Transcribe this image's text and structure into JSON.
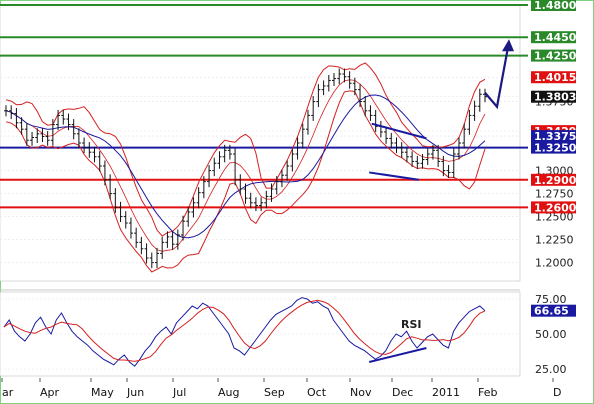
{
  "chart_data": [
    {
      "type": "candlestick",
      "ylim": [
        1.18,
        1.48
      ],
      "y_ticks": [
        "1.4800",
        "1.4450",
        "1.4250",
        "1.4015",
        "1.3803",
        "1.3750",
        "1.3429",
        "1.3375",
        "1.3250",
        "1.3000",
        "1.2900",
        "1.2750",
        "1.2600",
        "1.2500",
        "1.2250",
        "1.2000"
      ],
      "x_ticks": [
        "ar",
        "Apr",
        "May",
        "Jun",
        "Jul",
        "Aug",
        "Sep",
        "Oct",
        "Nov",
        "Dec",
        "2011",
        "Feb",
        "D"
      ],
      "last_price": 1.3803,
      "last_price_label": "1.3803",
      "price_badges": [
        {
          "value": 1.48,
          "label": "1.4800",
          "color": "#2a8a2a"
        },
        {
          "value": 1.445,
          "label": "1.4450",
          "color": "#2a8a2a"
        },
        {
          "value": 1.425,
          "label": "1.4250",
          "color": "#2a8a2a"
        },
        {
          "value": 1.4015,
          "label": "1.4015",
          "color": "#e01010"
        },
        {
          "value": 1.3429,
          "label": "1.3429",
          "color": "#e01010"
        },
        {
          "value": 1.3375,
          "label": "1.3375",
          "color": "#1a1aa0"
        },
        {
          "value": 1.325,
          "label": "1.3250",
          "color": "#1a1aa0"
        },
        {
          "value": 1.29,
          "label": "1.2900",
          "color": "#e01010"
        },
        {
          "value": 1.26,
          "label": "1.2600",
          "color": "#e01010"
        }
      ],
      "horizontal_lines": [
        {
          "value": 1.48,
          "color": "#2a8a2a"
        },
        {
          "value": 1.445,
          "color": "#2a8a2a"
        },
        {
          "value": 1.425,
          "color": "#2a8a2a"
        },
        {
          "value": 1.325,
          "color": "#1a1aa0"
        },
        {
          "value": 1.29,
          "color": "#e01010"
        },
        {
          "value": 1.26,
          "color": "#e01010"
        }
      ],
      "close_series": [
        1.365,
        1.362,
        1.352,
        1.345,
        1.333,
        1.336,
        1.34,
        1.337,
        1.333,
        1.35,
        1.36,
        1.356,
        1.35,
        1.34,
        1.33,
        1.325,
        1.32,
        1.315,
        1.305,
        1.29,
        1.275,
        1.26,
        1.25,
        1.243,
        1.232,
        1.222,
        1.215,
        1.205,
        1.2,
        1.21,
        1.222,
        1.228,
        1.22,
        1.23,
        1.245,
        1.255,
        1.265,
        1.276,
        1.288,
        1.3,
        1.308,
        1.315,
        1.322,
        1.318,
        1.29,
        1.28,
        1.27,
        1.265,
        1.262,
        1.265,
        1.272,
        1.28,
        1.288,
        1.295,
        1.305,
        1.318,
        1.33,
        1.345,
        1.36,
        1.375,
        1.388,
        1.392,
        1.398,
        1.4,
        1.405,
        1.402,
        1.395,
        1.388,
        1.375,
        1.365,
        1.36,
        1.348,
        1.342,
        1.335,
        1.33,
        1.325,
        1.32,
        1.315,
        1.31,
        1.308,
        1.312,
        1.318,
        1.322,
        1.31,
        1.3,
        1.298,
        1.318,
        1.33,
        1.345,
        1.36,
        1.37,
        1.383,
        1.3803
      ],
      "annotations": [
        {
          "kind": "resistance-trendline",
          "from": [
            0.715,
            1.351
          ],
          "to": [
            0.82,
            1.335
          ]
        },
        {
          "kind": "support-trendline",
          "from": [
            0.71,
            1.298
          ],
          "to": [
            0.805,
            1.29
          ]
        },
        {
          "kind": "projection-arrow",
          "description": "expected rise toward 1.4450"
        }
      ]
    },
    {
      "type": "line",
      "title": "RSI",
      "ylim": [
        20,
        80
      ],
      "y_ticks": [
        "75.00",
        "50.00",
        "25.00"
      ],
      "last_value": 66.65,
      "last_value_label": "66.65",
      "series": [
        {
          "name": "RSI",
          "values": [
            55,
            60,
            52,
            48,
            45,
            50,
            58,
            62,
            55,
            50,
            60,
            65,
            58,
            52,
            48,
            45,
            42,
            38,
            35,
            32,
            30,
            28,
            32,
            35,
            30,
            27,
            32,
            38,
            42,
            48,
            52,
            55,
            50,
            58,
            62,
            66,
            70,
            68,
            72,
            70,
            65,
            60,
            55,
            50,
            40,
            38,
            35,
            40,
            45,
            50,
            55,
            60,
            64,
            66,
            68,
            70,
            74,
            76,
            75,
            72,
            73,
            70,
            68,
            60,
            55,
            50,
            45,
            42,
            40,
            38,
            35,
            32,
            34,
            38,
            45,
            50,
            48,
            52,
            45,
            40,
            44,
            48,
            50,
            46,
            42,
            40,
            52,
            58,
            62,
            66,
            68,
            70,
            66.65
          ]
        }
      ],
      "annotations": [
        {
          "kind": "rising-support-trendline",
          "from": [
            0.71,
            30
          ],
          "to": [
            0.82,
            40
          ]
        }
      ]
    }
  ]
}
